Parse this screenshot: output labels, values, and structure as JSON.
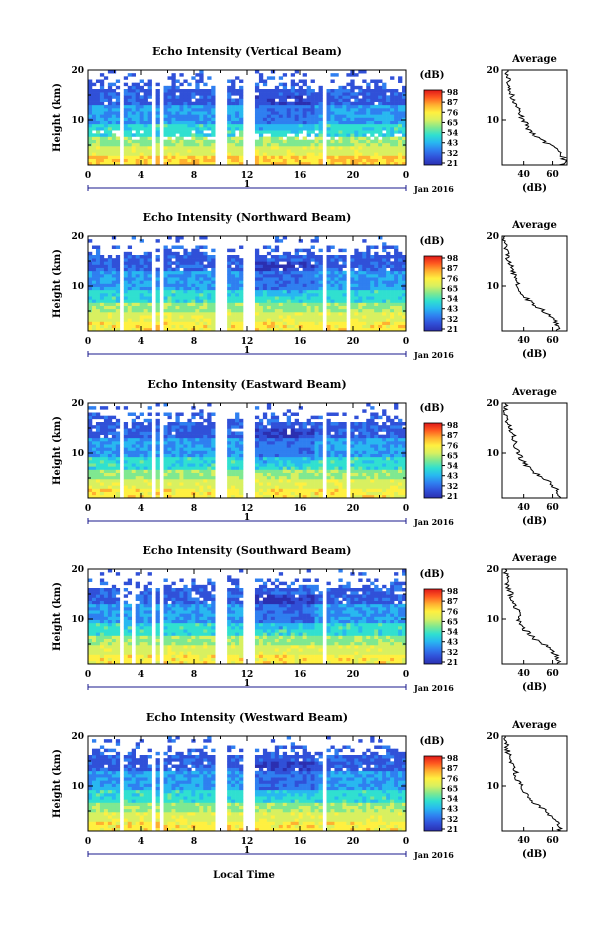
{
  "figure": {
    "time_axis_label": "Local Time",
    "time_ticks": [
      "0",
      "4",
      "8",
      "12",
      "16",
      "20",
      "0"
    ],
    "day_marker": "1",
    "month_label": "Jan 2016",
    "height_label": "Height (km)",
    "height_ticks": [
      "10",
      "20"
    ],
    "colorbar_unit": "(dB)",
    "colorbar_ticks": [
      "21",
      "32",
      "43",
      "54",
      "65",
      "76",
      "87",
      "98"
    ],
    "average_title": "Average",
    "average_unit": "(dB)",
    "average_ticks": [
      "40",
      "60"
    ],
    "colorscale": [
      "#2b2fb0",
      "#3050d8",
      "#2f7ff0",
      "#28b8f0",
      "#30e0d0",
      "#7fe890",
      "#d8f060",
      "#fff040",
      "#ffb030",
      "#ff5a20",
      "#e01818"
    ]
  },
  "chart_data": [
    {
      "type": "heatmap",
      "title": "Echo Intensity (Vertical Beam)",
      "x_range_hours": [
        0,
        24
      ],
      "y_range_km": [
        1,
        20
      ],
      "color_range_db": [
        21,
        98
      ],
      "data_gaps_hours": [
        [
          2.5,
          2.7
        ],
        [
          4.9,
          5.1
        ],
        [
          5.4,
          5.6
        ],
        [
          9.7,
          10.5
        ],
        [
          11.8,
          12.6
        ],
        [
          17.8,
          18.1
        ]
      ],
      "profile": {
        "type": "line",
        "x_range_db": [
          25,
          70
        ],
        "height_km": [
          1,
          2,
          3,
          4,
          5,
          6,
          7,
          8,
          9,
          10,
          11,
          12,
          13,
          14,
          15,
          16,
          17,
          18,
          19,
          20
        ],
        "echo_db": [
          66,
          68,
          67,
          64,
          58,
          52,
          48,
          44,
          42,
          40,
          38,
          36,
          34,
          33,
          32,
          31,
          30,
          30,
          29,
          29
        ]
      }
    },
    {
      "type": "heatmap",
      "title": "Echo Intensity (Northward Beam)",
      "x_range_hours": [
        0,
        24
      ],
      "y_range_km": [
        1,
        20
      ],
      "color_range_db": [
        21,
        98
      ],
      "data_gaps_hours": [
        [
          2.5,
          2.8
        ],
        [
          4.9,
          5.1
        ],
        [
          5.4,
          5.6
        ],
        [
          9.7,
          10.5
        ],
        [
          11.8,
          12.6
        ],
        [
          17.8,
          18.1
        ],
        [
          19.5,
          19.8
        ]
      ],
      "profile": {
        "type": "line",
        "x_range_db": [
          25,
          70
        ],
        "height_km": [
          1,
          2,
          3,
          4,
          5,
          6,
          7,
          8,
          9,
          10,
          11,
          12,
          13,
          14,
          15,
          16,
          17,
          18,
          19,
          20
        ],
        "echo_db": [
          64,
          64,
          62,
          58,
          54,
          48,
          44,
          40,
          38,
          36,
          35,
          34,
          33,
          32,
          30,
          29,
          28,
          28,
          27,
          27
        ]
      }
    },
    {
      "type": "heatmap",
      "title": "Echo Intensity (Eastward Beam)",
      "x_range_hours": [
        0,
        24
      ],
      "y_range_km": [
        1,
        20
      ],
      "color_range_db": [
        21,
        98
      ],
      "data_gaps_hours": [
        [
          2.5,
          2.8
        ],
        [
          4.9,
          5.1
        ],
        [
          5.4,
          5.6
        ],
        [
          9.7,
          10.5
        ],
        [
          11.8,
          12.6
        ],
        [
          17.8,
          18.1
        ],
        [
          19.5,
          19.8
        ]
      ],
      "profile": {
        "type": "line",
        "x_range_db": [
          25,
          70
        ],
        "height_km": [
          1,
          2,
          3,
          4,
          5,
          6,
          7,
          8,
          9,
          10,
          11,
          12,
          13,
          14,
          15,
          16,
          17,
          18,
          19,
          20
        ],
        "echo_db": [
          64,
          63,
          62,
          58,
          54,
          48,
          44,
          40,
          38,
          36,
          35,
          34,
          33,
          32,
          30,
          29,
          28,
          28,
          27,
          27
        ]
      }
    },
    {
      "type": "heatmap",
      "title": "Echo Intensity (Southward Beam)",
      "x_range_hours": [
        0,
        24
      ],
      "y_range_km": [
        1,
        20
      ],
      "color_range_db": [
        21,
        98
      ],
      "data_gaps_hours": [
        [
          2.5,
          2.8
        ],
        [
          3.4,
          3.6
        ],
        [
          3.9,
          4.0
        ],
        [
          4.9,
          5.1
        ],
        [
          5.4,
          5.6
        ],
        [
          9.7,
          10.5
        ],
        [
          11.8,
          12.6
        ],
        [
          17.8,
          18.1
        ]
      ],
      "profile": {
        "type": "line",
        "x_range_db": [
          25,
          70
        ],
        "height_km": [
          1,
          2,
          3,
          4,
          5,
          6,
          7,
          8,
          9,
          10,
          11,
          12,
          13,
          14,
          15,
          16,
          17,
          18,
          19,
          20
        ],
        "echo_db": [
          64,
          64,
          62,
          58,
          54,
          48,
          44,
          40,
          38,
          37,
          36,
          35,
          34,
          32,
          31,
          30,
          29,
          28,
          28,
          27
        ]
      }
    },
    {
      "type": "heatmap",
      "title": "Echo Intensity (Westward Beam)",
      "x_range_hours": [
        0,
        24
      ],
      "y_range_km": [
        1,
        20
      ],
      "color_range_db": [
        21,
        98
      ],
      "data_gaps_hours": [
        [
          2.5,
          2.8
        ],
        [
          4.9,
          5.1
        ],
        [
          5.4,
          5.6
        ],
        [
          9.7,
          10.5
        ],
        [
          11.8,
          12.6
        ],
        [
          17.8,
          18.1
        ]
      ],
      "profile": {
        "type": "line",
        "x_range_db": [
          25,
          70
        ],
        "height_km": [
          1,
          2,
          3,
          4,
          5,
          6,
          7,
          8,
          9,
          10,
          11,
          12,
          13,
          14,
          15,
          16,
          17,
          18,
          19,
          20
        ],
        "echo_db": [
          64,
          65,
          63,
          59,
          55,
          50,
          45,
          42,
          40,
          38,
          36,
          35,
          34,
          32,
          31,
          30,
          29,
          28,
          28,
          27
        ]
      }
    }
  ]
}
